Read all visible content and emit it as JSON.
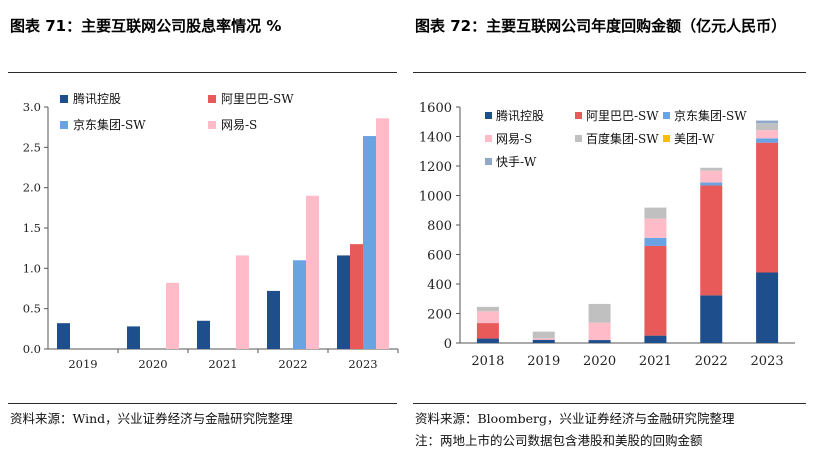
{
  "left": {
    "title": "图表 71：主要互联网公司股息率情况 %",
    "source": "资料来源：Wind，兴业证券经济与金融研究院整理"
  },
  "right": {
    "title": "图表 72：主要互联网公司年度回购金额（亿元人民币）",
    "source": "资料来源：Bloomberg，兴业证券经济与金融研究院整理",
    "note": "注：两地上市的公司数据包含港股和美股的回购金额"
  },
  "chart_data": [
    {
      "type": "bar",
      "title": "",
      "xlabel": "",
      "ylabel": "",
      "categories": [
        "2019",
        "2020",
        "2021",
        "2022",
        "2023"
      ],
      "ylim": [
        0,
        3.0
      ],
      "yticks": [
        "0.0",
        "0.5",
        "1.0",
        "1.5",
        "2.0",
        "2.5",
        "3.0"
      ],
      "grid": false,
      "legend_position": "top",
      "series": [
        {
          "name": "腾讯控股",
          "color": "#1f4e8c",
          "values": [
            0.32,
            0.28,
            0.35,
            0.72,
            1.16
          ]
        },
        {
          "name": "阿里巴巴-SW",
          "color": "#e85a5a",
          "values": [
            null,
            null,
            null,
            null,
            1.3
          ]
        },
        {
          "name": "京东集团-SW",
          "color": "#6aa3e2",
          "values": [
            null,
            null,
            null,
            1.1,
            2.64
          ]
        },
        {
          "name": "网易-S",
          "color": "#ffbcc8",
          "values": [
            null,
            0.82,
            1.16,
            1.9,
            2.86
          ]
        }
      ]
    },
    {
      "type": "stacked-bar",
      "title": "",
      "xlabel": "",
      "ylabel": "",
      "categories": [
        "2018",
        "2019",
        "2020",
        "2021",
        "2022",
        "2023"
      ],
      "ylim": [
        0,
        1600
      ],
      "yticks": [
        "0",
        "200",
        "400",
        "600",
        "800",
        "1000",
        "1200",
        "1400",
        "1600"
      ],
      "grid": false,
      "legend_position": "top",
      "series": [
        {
          "name": "腾讯控股",
          "color": "#1f4e8c",
          "values": [
            30,
            22,
            20,
            50,
            323,
            478
          ]
        },
        {
          "name": "阿里巴巴-SW",
          "color": "#e85a5a",
          "values": [
            105,
            0,
            0,
            608,
            745,
            880
          ]
        },
        {
          "name": "京东集团-SW",
          "color": "#6aa3e2",
          "values": [
            0,
            0,
            0,
            55,
            20,
            30
          ]
        },
        {
          "name": "网易-S",
          "color": "#ffbcc8",
          "values": [
            80,
            10,
            118,
            130,
            80,
            55
          ]
        },
        {
          "name": "百度集团-SW",
          "color": "#c0c0c0",
          "values": [
            30,
            45,
            127,
            75,
            20,
            47
          ]
        },
        {
          "name": "美团-W",
          "color": "#f5c000",
          "values": [
            0,
            0,
            0,
            0,
            0,
            0
          ]
        },
        {
          "name": "快手-W",
          "color": "#8fa8c8",
          "values": [
            0,
            0,
            0,
            0,
            0,
            18
          ]
        }
      ]
    }
  ]
}
